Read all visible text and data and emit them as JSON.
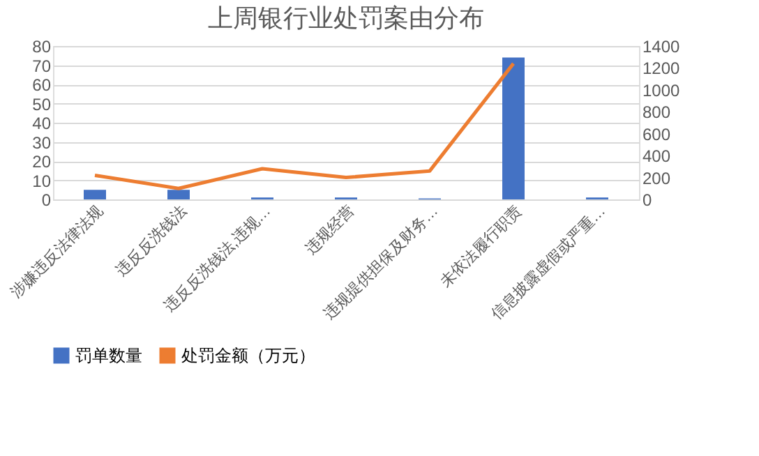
{
  "chart_data": {
    "type": "bar",
    "title": "上周银行业处罚案由分布",
    "categories": [
      "涉嫌违反法律法规",
      "违反反洗钱法",
      "违反反洗钱法,违规…",
      "违规经营",
      "违规提供担保及财务…",
      "未依法履行职责",
      "信息披露虚假或严重…"
    ],
    "series": [
      {
        "name": "罚单数量",
        "color": "#4472c4",
        "values": [
          5,
          5,
          1,
          1,
          0.5,
          74,
          1
        ]
      },
      {
        "name": "处罚金额（万元）",
        "color": "#ed7d31",
        "type": "line",
        "axis": "y2",
        "values": [
          220,
          100,
          280,
          200,
          260,
          1240,
          null
        ]
      }
    ],
    "ylim": [
      0,
      80
    ],
    "yticks": [
      0,
      10,
      20,
      30,
      40,
      50,
      60,
      70,
      80
    ],
    "y2lim": [
      0,
      1400
    ],
    "y2ticks": [
      0,
      200,
      400,
      600,
      800,
      1000,
      1200,
      1400
    ],
    "grid": "y",
    "legend": "bottom"
  }
}
